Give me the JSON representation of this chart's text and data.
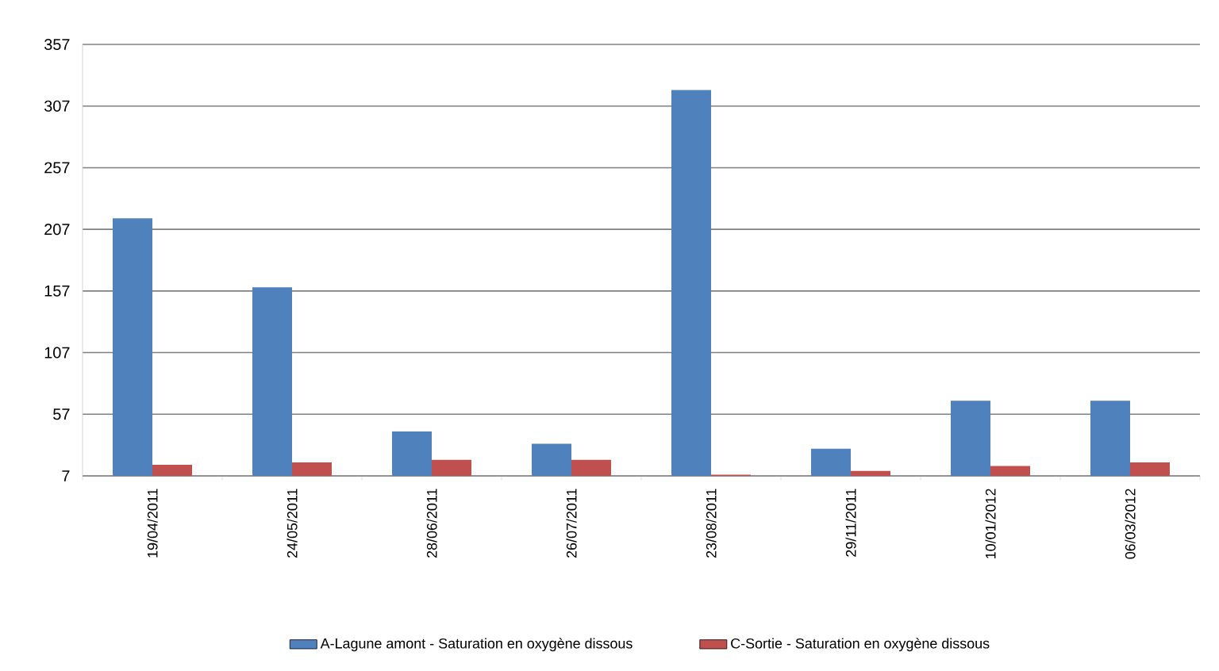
{
  "chart_data": {
    "type": "bar",
    "categories": [
      "19/04/2011",
      "24/05/2011",
      "28/06/2011",
      "26/07/2011",
      "23/08/2011",
      "29/11/2011",
      "10/01/2012",
      "06/03/2012"
    ],
    "series": [
      {
        "name": "A-Lagune amont - Saturation en oxygène dissous",
        "color": "#4f81bd",
        "values": [
          216,
          160,
          43,
          33,
          320,
          29,
          68,
          68
        ]
      },
      {
        "name": "C-Sortie - Saturation en oxygène dissous",
        "color": "#c0504d",
        "values": [
          16,
          18,
          20,
          20,
          8,
          11,
          15,
          18
        ]
      }
    ],
    "ylim": [
      7,
      357
    ],
    "yticks": [
      7,
      57,
      107,
      157,
      207,
      257,
      307,
      357
    ],
    "grid": "y",
    "legend": "bottom"
  }
}
